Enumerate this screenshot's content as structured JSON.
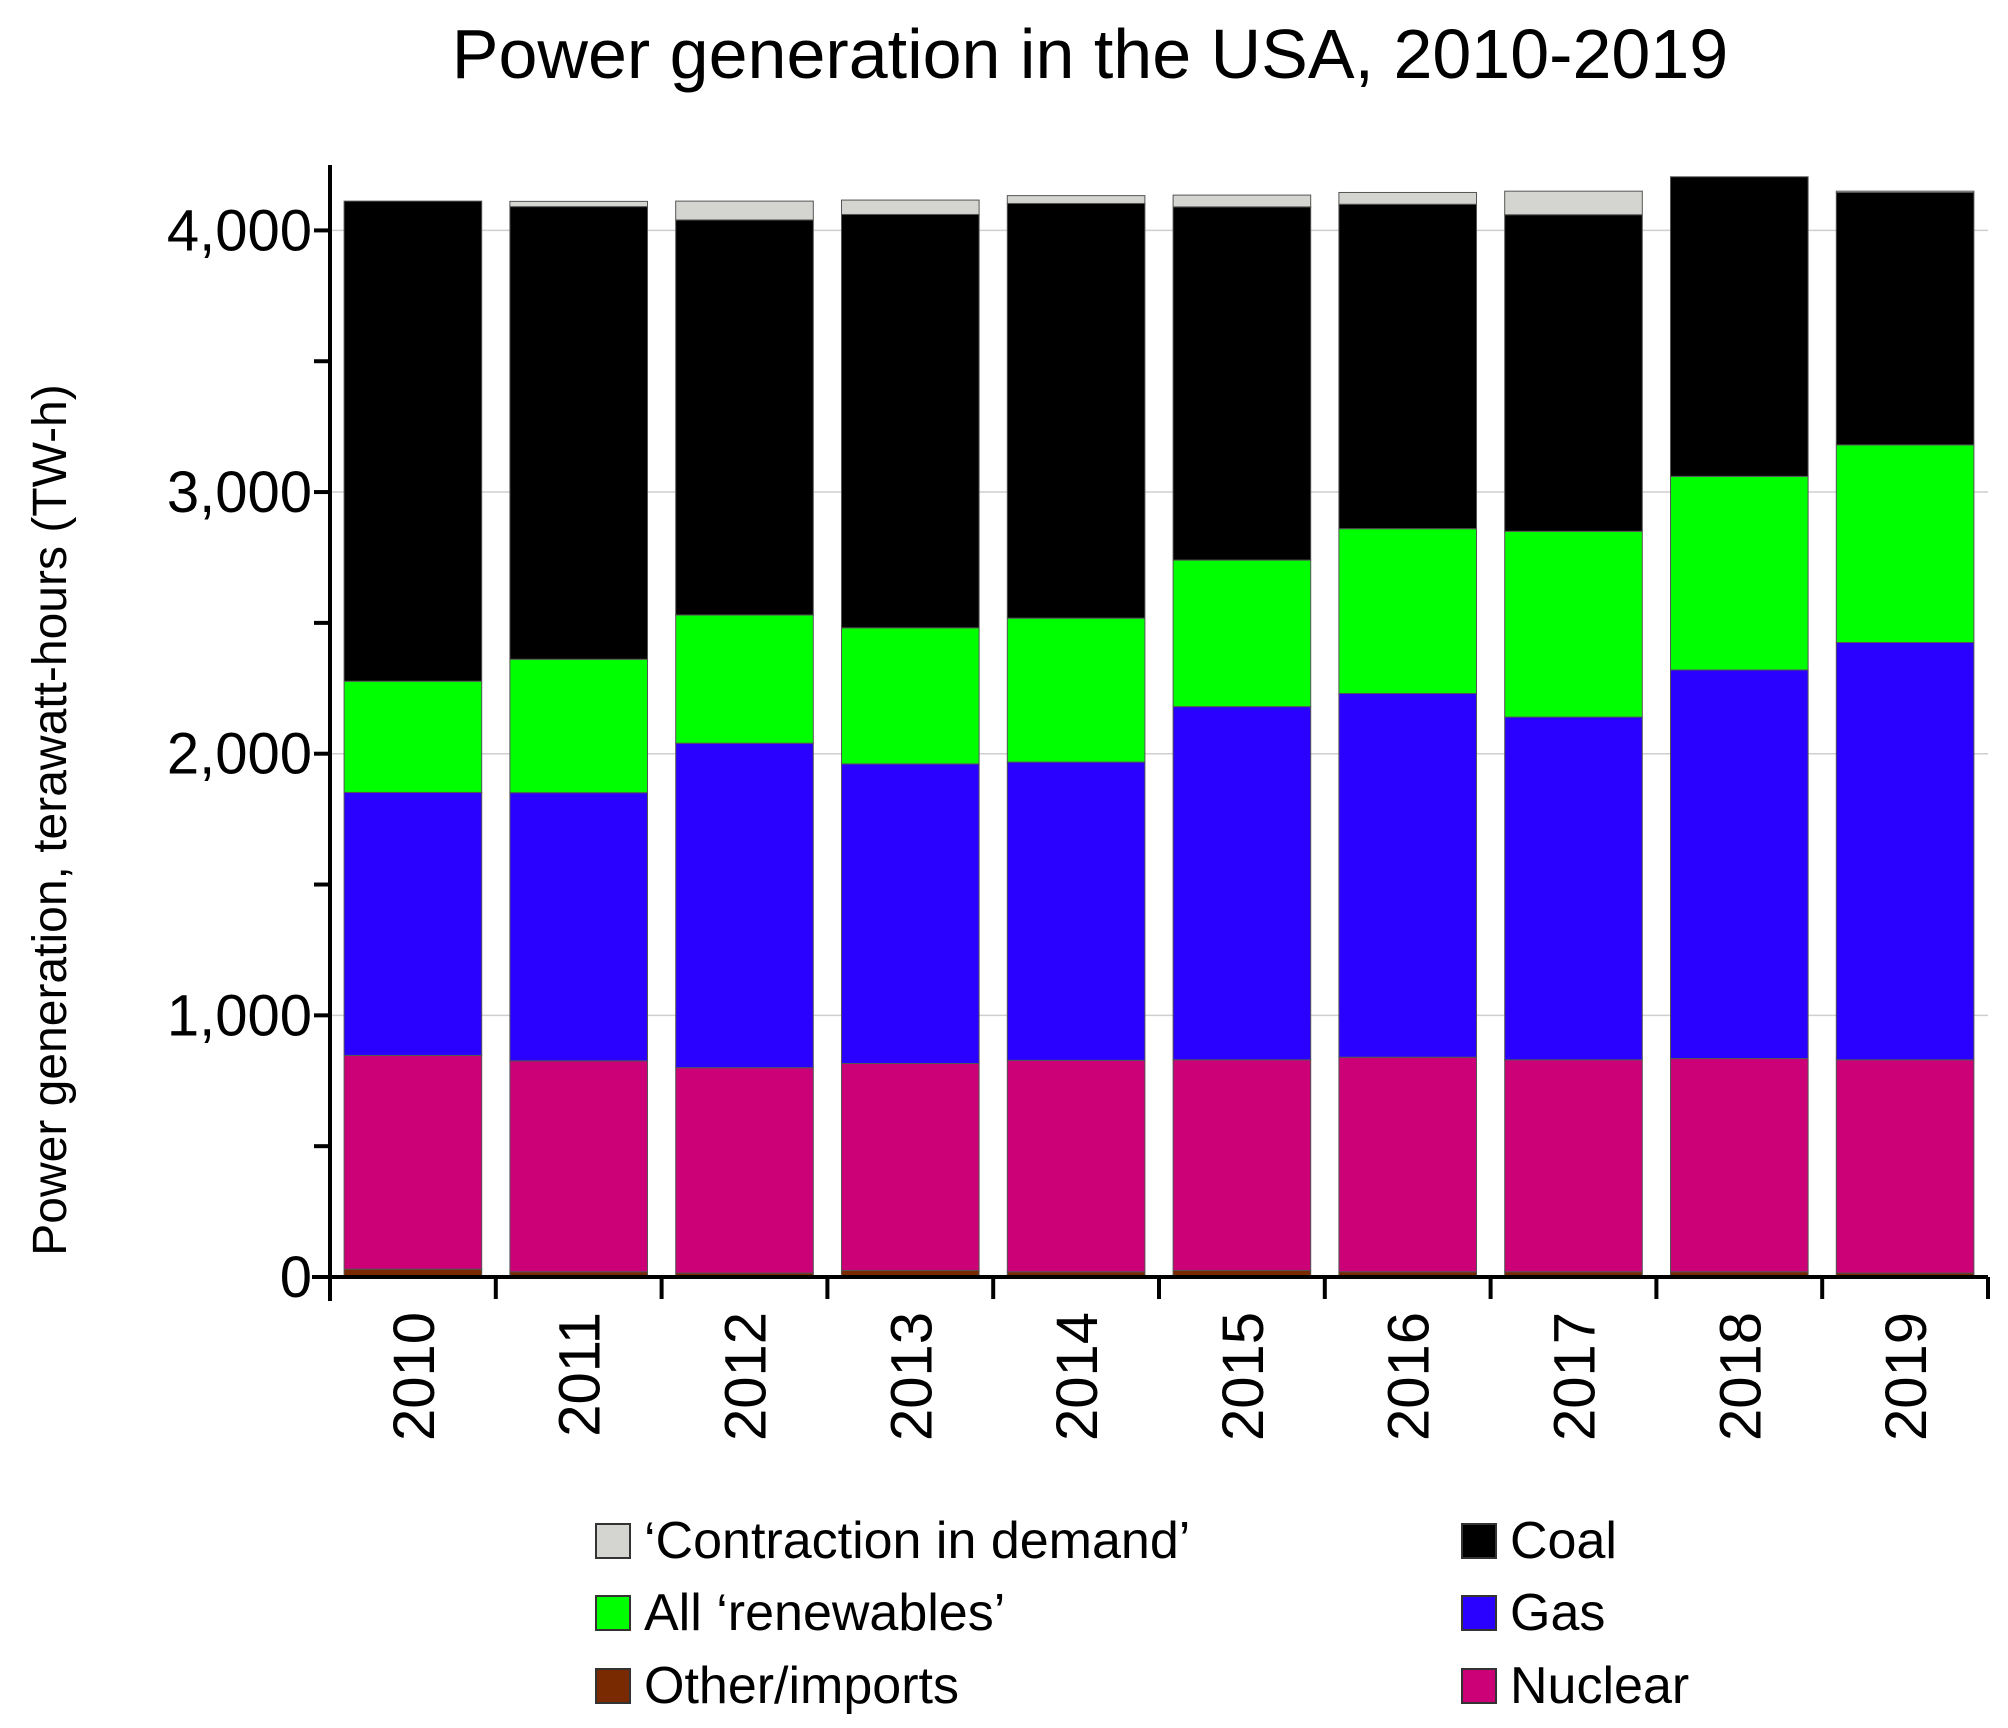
{
  "chart_data": {
    "type": "bar",
    "stacked": true,
    "title": "Power generation in the USA, 2010-2019",
    "xlabel": "",
    "ylabel": "Power generation, terawatt-hours (TW-h)",
    "ylim": [
      0,
      4250
    ],
    "yticks": [
      0,
      1000,
      2000,
      3000,
      4000
    ],
    "ytick_labels": [
      "0",
      "1,000",
      "2,000",
      "3,000",
      "4,000"
    ],
    "grid": true,
    "legend_position": "bottom",
    "categories": [
      "2010",
      "2011",
      "2012",
      "2013",
      "2014",
      "2015",
      "2016",
      "2017",
      "2018",
      "2019"
    ],
    "series": [
      {
        "name": "Other/imports",
        "color": "#7a2a00",
        "values": [
          30,
          20,
          15,
          25,
          20,
          25,
          20,
          20,
          20,
          15
        ]
      },
      {
        "name": "Nuclear",
        "color": "#cc0077",
        "values": [
          817,
          806,
          785,
          791,
          808,
          805,
          820,
          810,
          815,
          815
        ]
      },
      {
        "name": "Gas",
        "color": "#2a00ff",
        "values": [
          1005,
          1025,
          1240,
          1145,
          1140,
          1350,
          1390,
          1310,
          1485,
          1595
        ]
      },
      {
        "name": "All ‘renewables’",
        "color": "#00ff00",
        "values": [
          425,
          510,
          490,
          520,
          550,
          560,
          630,
          710,
          740,
          755
        ]
      },
      {
        "name": "Coal",
        "color": "#000000",
        "values": [
          1835,
          1730,
          1510,
          1580,
          1585,
          1350,
          1240,
          1210,
          1145,
          965
        ]
      },
      {
        "name": "‘Contraction in demand’",
        "color": "#d4d4d0",
        "values": [
          0,
          20,
          72,
          55,
          30,
          45,
          45,
          90,
          0,
          5
        ]
      }
    ],
    "legend": [
      {
        "name": "‘Contraction in demand’",
        "color": "#d4d4d0"
      },
      {
        "name": "Coal",
        "color": "#000000"
      },
      {
        "name": "All ‘renewables’",
        "color": "#00ff00"
      },
      {
        "name": "Gas",
        "color": "#2a00ff"
      },
      {
        "name": "Other/imports",
        "color": "#7a2a00"
      },
      {
        "name": "Nuclear",
        "color": "#cc0077"
      }
    ]
  }
}
